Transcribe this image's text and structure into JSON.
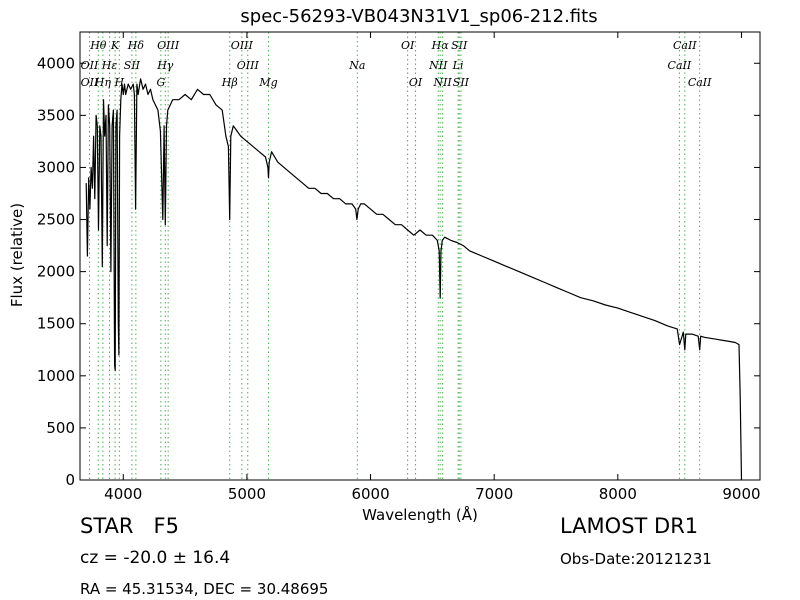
{
  "chart_data": {
    "type": "line",
    "title": "spec-56293-VB043N31V1_sp06-212.fits",
    "xlabel": "Wavelength (Å)",
    "ylabel": "Flux (relative)",
    "xlim": [
      3650,
      9150
    ],
    "ylim": [
      0,
      4300
    ],
    "xticks": [
      4000,
      5000,
      6000,
      7000,
      8000,
      9000
    ],
    "yticks": [
      0,
      500,
      1000,
      1500,
      2000,
      2500,
      3000,
      3500,
      4000
    ],
    "grid": false,
    "legend": "none",
    "colors": {
      "spectrum": "#000000",
      "line_markers": "#4caf50"
    },
    "series": [
      {
        "values_note": "flux vs wavelength",
        "x": [
          3700,
          3710,
          3720,
          3730,
          3740,
          3750,
          3760,
          3770,
          3780,
          3790,
          3800,
          3810,
          3820,
          3830,
          3840,
          3850,
          3860,
          3870,
          3880,
          3890,
          3900,
          3910,
          3920,
          3930,
          3935,
          3940,
          3950,
          3960,
          3965,
          3970,
          3980,
          3990,
          4000,
          4010,
          4020,
          4040,
          4060,
          4080,
          4090,
          4100,
          4110,
          4120,
          4140,
          4160,
          4180,
          4200,
          4220,
          4240,
          4260,
          4280,
          4300,
          4320,
          4330,
          4340,
          4350,
          4360,
          4380,
          4400,
          4450,
          4500,
          4550,
          4600,
          4650,
          4700,
          4750,
          4800,
          4830,
          4850,
          4861,
          4870,
          4890,
          4920,
          4950,
          5000,
          5050,
          5100,
          5150,
          5170,
          5175,
          5180,
          5200,
          5250,
          5300,
          5350,
          5400,
          5450,
          5500,
          5550,
          5600,
          5650,
          5700,
          5750,
          5800,
          5850,
          5880,
          5890,
          5900,
          5920,
          5950,
          6000,
          6050,
          6100,
          6150,
          6200,
          6250,
          6300,
          6350,
          6400,
          6450,
          6500,
          6540,
          6555,
          6563,
          6570,
          6580,
          6600,
          6650,
          6700,
          6750,
          6800,
          6900,
          7000,
          7100,
          7200,
          7300,
          7400,
          7500,
          7600,
          7700,
          7800,
          7900,
          8000,
          8100,
          8200,
          8300,
          8400,
          8480,
          8500,
          8530,
          8542,
          8550,
          8600,
          8650,
          8662,
          8670,
          8700,
          8750,
          8800,
          8850,
          8900,
          8950,
          8980,
          8990,
          9000
        ],
        "y": [
          2850,
          2150,
          2900,
          2600,
          3000,
          2800,
          3300,
          2700,
          3500,
          3400,
          2400,
          3400,
          3300,
          2050,
          3650,
          3300,
          3500,
          2250,
          3600,
          3400,
          2000,
          3400,
          3550,
          1100,
          1050,
          3400,
          3550,
          1500,
          1200,
          3300,
          3650,
          3800,
          3700,
          3800,
          3700,
          3800,
          3750,
          3800,
          3700,
          2600,
          3800,
          3700,
          3850,
          3750,
          3800,
          3700,
          3750,
          3650,
          3600,
          3550,
          3350,
          2500,
          3400,
          2450,
          3400,
          3550,
          3600,
          3650,
          3650,
          3700,
          3650,
          3750,
          3700,
          3700,
          3600,
          3550,
          3300,
          3200,
          2500,
          3300,
          3400,
          3350,
          3300,
          3250,
          3200,
          3150,
          3100,
          3000,
          2900,
          3050,
          3150,
          3050,
          3000,
          2950,
          2900,
          2850,
          2800,
          2800,
          2750,
          2750,
          2700,
          2700,
          2650,
          2650,
          2600,
          2500,
          2600,
          2650,
          2650,
          2600,
          2550,
          2550,
          2500,
          2450,
          2450,
          2400,
          2350,
          2400,
          2350,
          2350,
          2300,
          2200,
          1750,
          2200,
          2300,
          2330,
          2300,
          2280,
          2250,
          2200,
          2150,
          2100,
          2050,
          2000,
          1950,
          1900,
          1850,
          1800,
          1750,
          1720,
          1680,
          1650,
          1610,
          1570,
          1530,
          1480,
          1450,
          1300,
          1420,
          1250,
          1400,
          1400,
          1380,
          1250,
          1380,
          1370,
          1360,
          1350,
          1340,
          1330,
          1320,
          1300,
          800,
          0
        ]
      }
    ],
    "line_markers": [
      {
        "label": "Hθ",
        "wavelength": 3798,
        "row": 1
      },
      {
        "label": "K",
        "wavelength": 3934,
        "row": 1
      },
      {
        "label": "Hδ",
        "wavelength": 4102,
        "row": 1
      },
      {
        "label": "OIII",
        "wavelength": 4363,
        "row": 1
      },
      {
        "label": "OIII",
        "wavelength": 4959,
        "row": 1
      },
      {
        "label": "OI",
        "wavelength": 6300,
        "row": 1
      },
      {
        "label": "Hα",
        "wavelength": 6563,
        "row": 1
      },
      {
        "label": "SII",
        "wavelength": 6717,
        "row": 1
      },
      {
        "label": "CaII",
        "wavelength": 8542,
        "row": 1
      },
      {
        "label": "OII",
        "wavelength": 3727,
        "row": 2
      },
      {
        "label": "Hε",
        "wavelength": 3889,
        "row": 2
      },
      {
        "label": "SII",
        "wavelength": 4070,
        "row": 2
      },
      {
        "label": "Hγ",
        "wavelength": 4340,
        "row": 2
      },
      {
        "label": "OIII",
        "wavelength": 5007,
        "row": 2
      },
      {
        "label": "Na",
        "wavelength": 5893,
        "row": 2
      },
      {
        "label": "NII",
        "wavelength": 6548,
        "row": 2
      },
      {
        "label": "Li",
        "wavelength": 6708,
        "row": 2
      },
      {
        "label": "CaII",
        "wavelength": 8498,
        "row": 2
      },
      {
        "label": "OII",
        "wavelength": 3727,
        "row": 3
      },
      {
        "label": "Hη",
        "wavelength": 3835,
        "row": 3
      },
      {
        "label": "H",
        "wavelength": 3968,
        "row": 3
      },
      {
        "label": "G",
        "wavelength": 4304,
        "row": 3
      },
      {
        "label": "Hβ",
        "wavelength": 4861,
        "row": 3
      },
      {
        "label": "Mg",
        "wavelength": 5175,
        "row": 3
      },
      {
        "label": "OI",
        "wavelength": 6364,
        "row": 3
      },
      {
        "label": "NII",
        "wavelength": 6583,
        "row": 3
      },
      {
        "label": "SII",
        "wavelength": 6731,
        "row": 3
      },
      {
        "label": "CaII",
        "wavelength": 8662,
        "row": 3
      }
    ]
  },
  "info": {
    "class_text": "STAR   F5",
    "survey": "LAMOST DR1",
    "cz_text": "cz = -20.0 ± 16.4",
    "obs_date": "Obs-Date:20121231",
    "coords": "RA = 45.31534, DEC = 30.48695"
  }
}
